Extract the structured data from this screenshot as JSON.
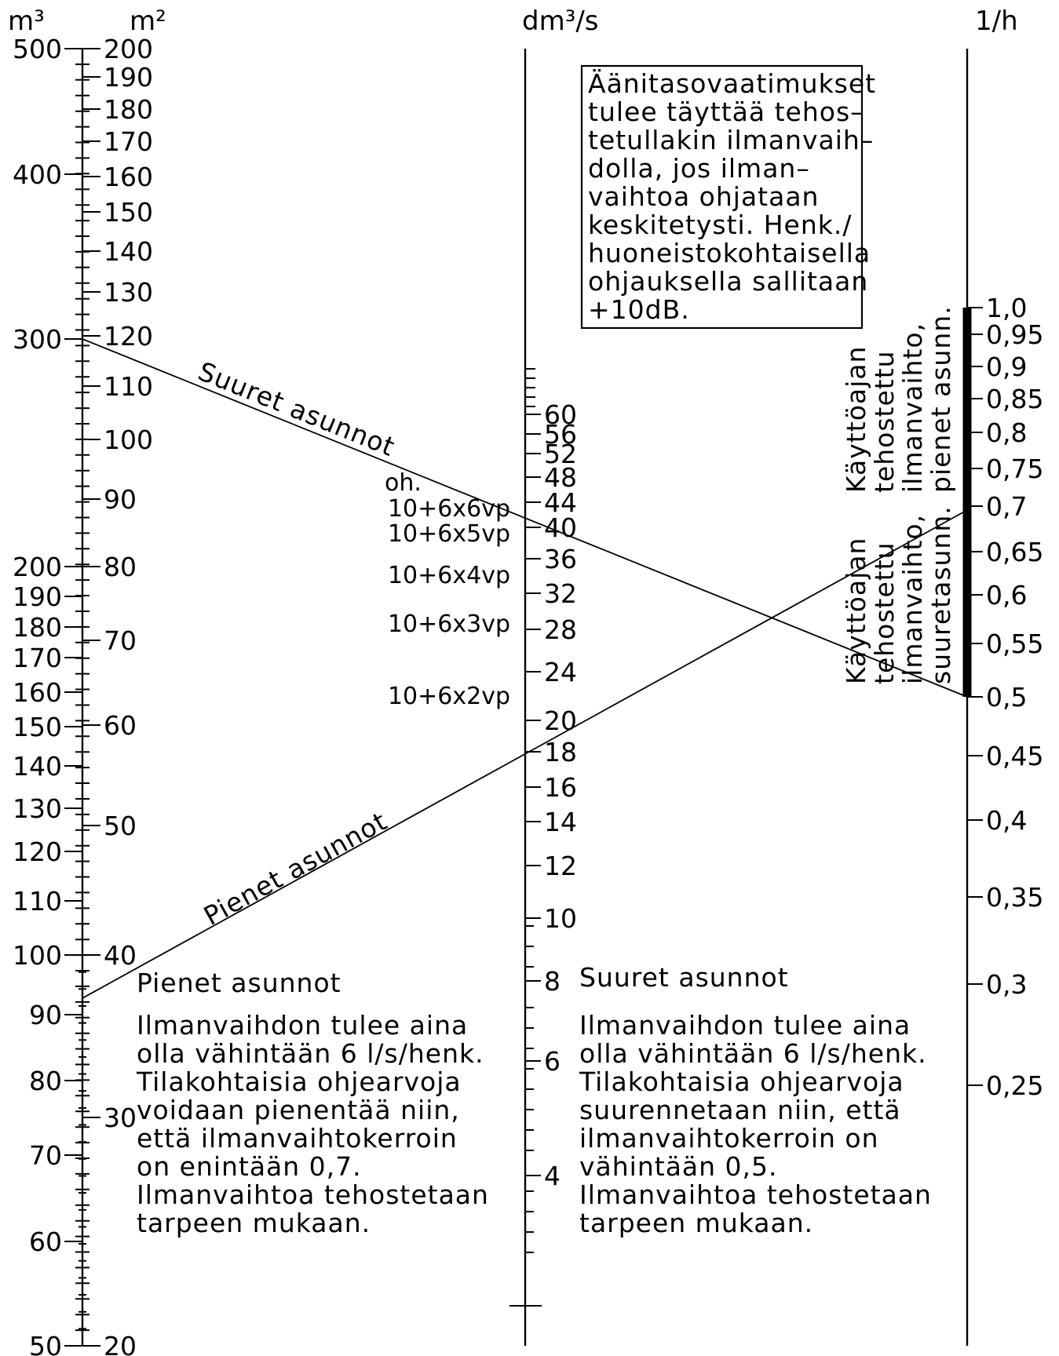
{
  "units": {
    "m3": "m³",
    "m2": "m²",
    "flow": "dm³/s",
    "rate": "1/h"
  },
  "m3_labels": [
    "500",
    "400",
    "300",
    "200",
    "190",
    "180",
    "170",
    "160",
    "150",
    "140",
    "130",
    "120",
    "110",
    "100",
    "90",
    "80",
    "70",
    "60",
    "50"
  ],
  "m2_labels": [
    "200",
    "190",
    "180",
    "170",
    "160",
    "150",
    "140",
    "130",
    "120",
    "110",
    "100",
    "90",
    "80",
    "70",
    "60",
    "50",
    "40",
    "30",
    "20"
  ],
  "flow_labels": [
    "60",
    "56",
    "52",
    "48",
    "44",
    "40",
    "36",
    "32",
    "28",
    "24",
    "20",
    "18",
    "16",
    "14",
    "12",
    "10",
    "8",
    "6",
    "4"
  ],
  "rate_labels": [
    "1,0",
    "0,95",
    "0,9",
    "0,85",
    "0,8",
    "0,75",
    "0,7",
    "0,65",
    "0,6",
    "0,55",
    "0,5",
    "0,45",
    "0,4",
    "0,35",
    "0,3",
    "0,25"
  ],
  "oh_label": "oh.",
  "vp_labels": [
    "10+6x6vp",
    "10+6x5vp",
    "10+6x4vp",
    "10+6x3vp",
    "10+6x2vp"
  ],
  "line_labels": {
    "large": "Suuret asunnot",
    "small": "Pienet asunnot"
  },
  "noise_note": [
    "Äänitasovaatimukset",
    "tulee täyttää tehos–",
    "tetullakin ilmanvaih–",
    "dolla, jos ilman–",
    "vaihtoa ohjataan",
    "keskitetysti. Henk./",
    "huoneistokohtaisella",
    "ohjauksella sallitaan",
    "+10dB."
  ],
  "band_upper_label": [
    "Käyttöajan",
    "tehostettu",
    "ilmanvaihto,",
    "pienet asunn."
  ],
  "band_lower_label": [
    "Käyttöajan",
    "tehostettu",
    "ilmanvaihto,",
    "suuretasunn."
  ],
  "small_note": {
    "title": "Pienet asunnot",
    "lines": [
      "Ilmanvaihdon tulee aina",
      "olla vähintään 6 l/s/henk.",
      "Tilakohtaisia ohjearvoja",
      "voidaan pienentää niin,",
      "että ilmanvaihtokerroin",
      "on enintään 0,7.",
      "Ilmanvaihtoa tehostetaan",
      "tarpeen mukaan."
    ]
  },
  "large_note": {
    "title": "Suuret asunnot",
    "lines": [
      "Ilmanvaihdon tulee aina",
      "olla vähintään 6 l/s/henk.",
      "Tilakohtaisia ohjearvoja",
      "suurennetaan niin, että",
      "ilmanvaihtokerroin on",
      "vähintään 0,5.",
      "Ilmanvaihtoa tehostetaan",
      "tarpeen mukaan."
    ]
  }
}
